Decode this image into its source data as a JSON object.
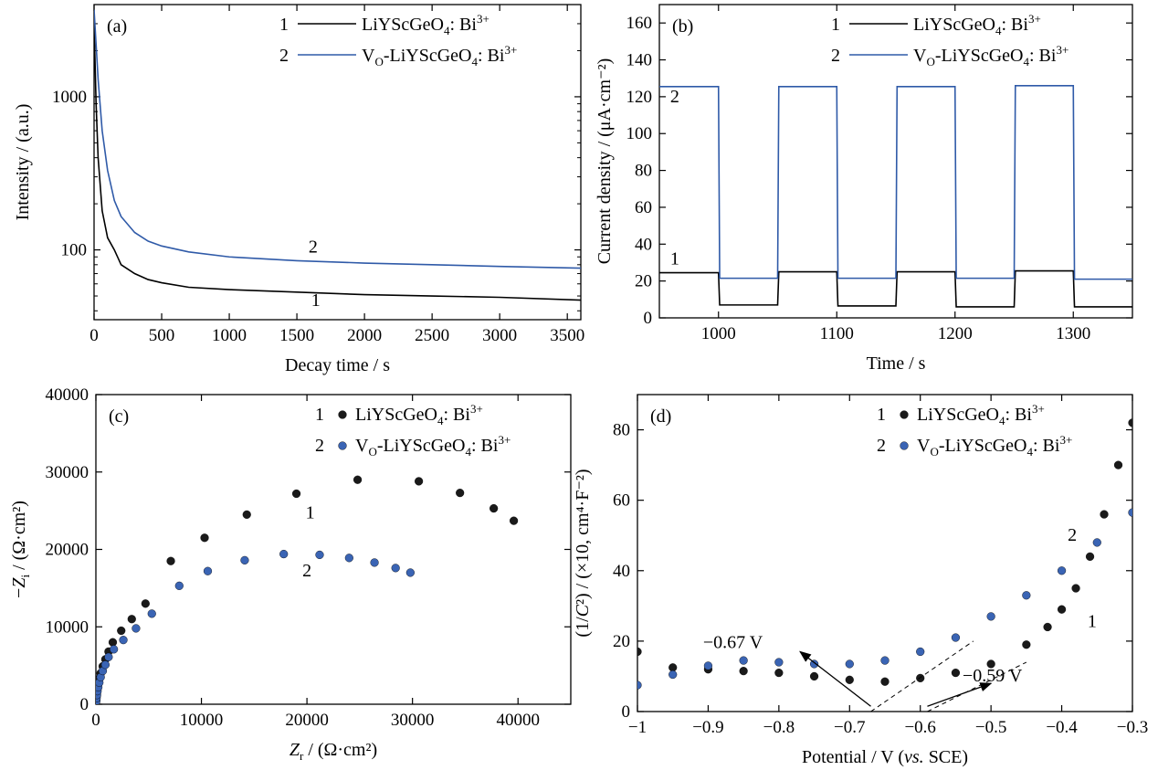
{
  "colors": {
    "series1": "#000000",
    "series2": "#2f5aa8",
    "marker1": "#1a1a1a",
    "marker2": "#3a64b4"
  },
  "chart_data": [
    {
      "id": "a",
      "panel_label": "(a)",
      "type": "line",
      "xlabel": "Decay time / s",
      "ylabel": "Intensity / (a.u.)",
      "xlim": [
        0,
        3600
      ],
      "ylim": [
        35,
        4000
      ],
      "yscale": "log",
      "xticks": [
        0,
        500,
        1000,
        1500,
        2000,
        2500,
        3000,
        3500
      ],
      "yticks": [
        100,
        1000
      ],
      "legend_position": "top-right",
      "legend": [
        {
          "num": "1",
          "base": "LiYScGeO",
          "sub": "4",
          "mid": ": Bi",
          "sup": "3+"
        },
        {
          "num": "2",
          "pre": "V",
          "presub": "O",
          "base": "-LiYScGeO",
          "sub": "4",
          "mid": ": Bi",
          "sup": "3+"
        }
      ],
      "series": [
        {
          "name": "1",
          "x": [
            0,
            15,
            30,
            60,
            100,
            150,
            200,
            300,
            400,
            500,
            700,
            1000,
            1500,
            2000,
            2500,
            3000,
            3600
          ],
          "y": [
            3000,
            900,
            400,
            180,
            120,
            100,
            80,
            70,
            64,
            61,
            57,
            55,
            53,
            51,
            50,
            49,
            47
          ]
        },
        {
          "name": "2",
          "x": [
            0,
            15,
            30,
            60,
            100,
            150,
            200,
            300,
            400,
            500,
            700,
            1000,
            1500,
            2000,
            2500,
            3000,
            3600
          ],
          "y": [
            3700,
            2200,
            1300,
            600,
            330,
            210,
            165,
            130,
            114,
            106,
            97,
            90,
            85,
            82,
            80,
            78,
            76
          ]
        }
      ],
      "annotations": [
        {
          "text": "2",
          "x": 1620,
          "y": 96
        },
        {
          "text": "1",
          "x": 1640,
          "y": 43
        }
      ]
    },
    {
      "id": "b",
      "panel_label": "(b)",
      "type": "line",
      "xlabel": "Time / s",
      "ylabel": "Current density / (μA·cm⁻²)",
      "xlim": [
        950,
        1350
      ],
      "ylim": [
        0,
        170
      ],
      "xticks": [
        1000,
        1100,
        1200,
        1300
      ],
      "yticks": [
        0,
        20,
        40,
        60,
        80,
        100,
        120,
        140,
        160
      ],
      "legend_position": "top-right",
      "legend": [
        {
          "num": "1",
          "base": "LiYScGeO",
          "sub": "4",
          "mid": ": Bi",
          "sup": "3+"
        },
        {
          "num": "2",
          "pre": "V",
          "presub": "O",
          "base": "-LiYScGeO",
          "sub": "4",
          "mid": ": Bi",
          "sup": "3+"
        }
      ],
      "series": [
        {
          "name": "1",
          "x": [
            950,
            1000,
            1001,
            1050,
            1051,
            1100,
            1101,
            1150,
            1151,
            1200,
            1201,
            1250,
            1251,
            1300,
            1301,
            1350
          ],
          "y": [
            24.5,
            24.5,
            7,
            7,
            25,
            25,
            6.5,
            6.5,
            25,
            25,
            6,
            6,
            25.5,
            25.5,
            6,
            6
          ]
        },
        {
          "name": "2",
          "x": [
            950,
            1000,
            1001,
            1050,
            1051,
            1100,
            1101,
            1150,
            1151,
            1200,
            1201,
            1250,
            1251,
            1300,
            1301,
            1350
          ],
          "y": [
            125.5,
            125.5,
            21.5,
            21.5,
            125.5,
            125.5,
            21.5,
            21.5,
            125.5,
            125.5,
            21.5,
            21.5,
            126,
            126,
            21,
            21
          ]
        }
      ],
      "annotations": [
        {
          "text": "2",
          "x": 963,
          "y": 117
        },
        {
          "text": "1",
          "x": 963,
          "y": 29
        }
      ]
    },
    {
      "id": "c",
      "panel_label": "(c)",
      "type": "scatter",
      "xlabel": "Z_r / (Ω·cm²)",
      "ylabel": "−Z_i / (Ω·cm²)",
      "xlim": [
        0,
        45000
      ],
      "ylim": [
        0,
        40000
      ],
      "xticks": [
        0,
        10000,
        20000,
        30000,
        40000
      ],
      "yticks": [
        0,
        10000,
        20000,
        30000,
        40000
      ],
      "legend_position": "top-right",
      "legend": [
        {
          "num": "1",
          "base": "LiYScGeO",
          "sub": "4",
          "mid": ": Bi",
          "sup": "3+"
        },
        {
          "num": "2",
          "pre": "V",
          "presub": "O",
          "base": "-LiYScGeO",
          "sub": "4",
          "mid": ": Bi",
          "sup": "3+"
        }
      ],
      "series": [
        {
          "name": "1",
          "x": [
            0,
            30,
            60,
            100,
            150,
            220,
            320,
            450,
            650,
            900,
            1200,
            1600,
            2400,
            3400,
            4700,
            7100,
            10300,
            14300,
            19000,
            24800,
            30600,
            34500,
            37700,
            39600
          ],
          "y": [
            0,
            500,
            1000,
            1500,
            2000,
            2600,
            3300,
            4000,
            4900,
            5800,
            6800,
            8000,
            9500,
            11000,
            13000,
            18500,
            21500,
            24500,
            27200,
            29000,
            28800,
            27300,
            25300,
            23700
          ]
        },
        {
          "name": "2",
          "x": [
            0,
            30,
            60,
            100,
            150,
            220,
            320,
            450,
            650,
            900,
            1200,
            1700,
            2600,
            3800,
            5300,
            7900,
            10600,
            14100,
            17800,
            21200,
            24000,
            26400,
            28400,
            29800
          ],
          "y": [
            0,
            400,
            800,
            1200,
            1700,
            2200,
            2800,
            3500,
            4300,
            5100,
            6100,
            7100,
            8300,
            9800,
            11700,
            15300,
            17200,
            18600,
            19400,
            19300,
            18900,
            18300,
            17600,
            17000
          ]
        }
      ],
      "annotations": [
        {
          "text": "1",
          "x": 20300,
          "y": 24000
        },
        {
          "text": "2",
          "x": 20000,
          "y": 16500
        }
      ]
    },
    {
      "id": "d",
      "panel_label": "(d)",
      "type": "scatter",
      "xlabel": "Potential / V (vs. SCE)",
      "ylabel": "(1/C²) / (×10, cm⁴·F⁻²)",
      "xlim": [
        -1.0,
        -0.3
      ],
      "ylim": [
        0,
        90
      ],
      "xticks": [
        -1.0,
        -0.9,
        -0.8,
        -0.7,
        -0.6,
        -0.5,
        -0.4,
        -0.3
      ],
      "yticks": [
        0,
        20,
        40,
        60,
        80
      ],
      "legend_position": "top-right",
      "legend": [
        {
          "num": "1",
          "base": "LiYScGeO",
          "sub": "4",
          "mid": ": Bi",
          "sup": "3+"
        },
        {
          "num": "2",
          "pre": "V",
          "presub": "O",
          "base": "-LiYScGeO",
          "sub": "4",
          "mid": ": Bi",
          "sup": "3+"
        }
      ],
      "series": [
        {
          "name": "1",
          "x": [
            -1.0,
            -0.95,
            -0.9,
            -0.85,
            -0.8,
            -0.75,
            -0.7,
            -0.65,
            -0.6,
            -0.55,
            -0.5,
            -0.45,
            -0.42,
            -0.4,
            -0.38,
            -0.36,
            -0.34,
            -0.32,
            -0.3
          ],
          "y": [
            17,
            12.5,
            12,
            11.5,
            11,
            10,
            9,
            8.5,
            9.5,
            11,
            13.5,
            19,
            24,
            29,
            35,
            44,
            56,
            70,
            82
          ]
        },
        {
          "name": "2",
          "x": [
            -1.0,
            -0.95,
            -0.9,
            -0.85,
            -0.8,
            -0.75,
            -0.7,
            -0.65,
            -0.6,
            -0.55,
            -0.5,
            -0.45,
            -0.4,
            -0.35,
            -0.3
          ],
          "y": [
            7.5,
            10.5,
            13,
            14.5,
            14,
            13.5,
            13.5,
            14.5,
            17,
            21,
            27,
            33,
            40,
            48,
            56.5
          ]
        }
      ],
      "annotations": [
        {
          "text": "2",
          "x": -0.385,
          "y": 48.5
        },
        {
          "text": "1",
          "x": -0.357,
          "y": 24
        },
        {
          "text": "−0.67 V",
          "x": -0.865,
          "y": 18
        },
        {
          "text": "−0.59 V",
          "x": -0.498,
          "y": 8.5
        }
      ],
      "tangents": [
        {
          "x": [
            -0.67,
            -0.525
          ],
          "y": [
            0,
            20
          ]
        },
        {
          "x": [
            -0.59,
            -0.45
          ],
          "y": [
            0,
            14
          ]
        }
      ],
      "arrows": [
        {
          "from": [
            -0.67,
            1.5
          ],
          "to": [
            -0.77,
            17
          ]
        },
        {
          "from": [
            -0.59,
            1.5
          ],
          "to": [
            -0.5,
            8
          ]
        }
      ]
    }
  ]
}
